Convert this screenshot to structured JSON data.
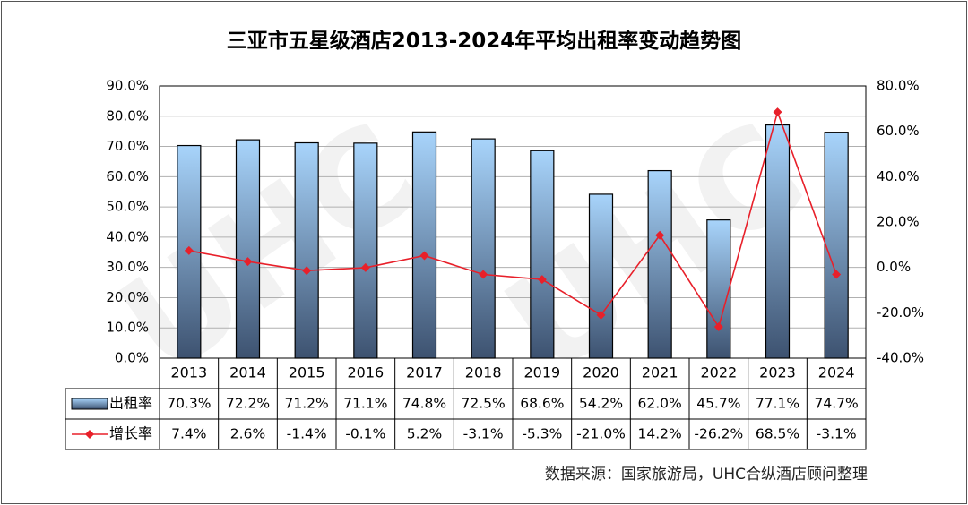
{
  "title": "三亚市五星级酒店2013-2024年平均出租率变动趋势图",
  "source": "数据来源：国家旅游局，UHC合纵酒店顾问整理",
  "watermark": "UHC",
  "chart_data": {
    "type": "bar",
    "title": "三亚市五星级酒店2013-2024年平均出租率变动趋势图",
    "categories": [
      "2013",
      "2014",
      "2015",
      "2016",
      "2017",
      "2018",
      "2019",
      "2020",
      "2021",
      "2022",
      "2023",
      "2024"
    ],
    "series": [
      {
        "name": "出租率",
        "type": "bar",
        "axis": "left",
        "values": [
          70.3,
          72.2,
          71.2,
          71.1,
          74.8,
          72.5,
          68.6,
          54.2,
          62.0,
          45.7,
          77.1,
          74.7
        ],
        "labels": [
          "70.3%",
          "72.2%",
          "71.2%",
          "71.1%",
          "74.8%",
          "72.5%",
          "68.6%",
          "54.2%",
          "62.0%",
          "45.7%",
          "77.1%",
          "74.7%"
        ]
      },
      {
        "name": "增长率",
        "type": "line",
        "axis": "right",
        "values": [
          7.4,
          2.6,
          -1.4,
          -0.1,
          5.2,
          -3.1,
          -5.3,
          -21.0,
          14.2,
          -26.2,
          68.5,
          -3.1
        ],
        "labels": [
          "7.4%",
          "2.6%",
          "-1.4%",
          "-0.1%",
          "5.2%",
          "-3.1%",
          "-5.3%",
          "-21.0%",
          "14.2%",
          "-26.2%",
          "68.5%",
          "-3.1%"
        ]
      }
    ],
    "y_left": {
      "min": 0,
      "max": 90,
      "step": 10,
      "tick_labels": [
        "0.0%",
        "10.0%",
        "20.0%",
        "30.0%",
        "40.0%",
        "50.0%",
        "60.0%",
        "70.0%",
        "80.0%",
        "90.0%"
      ]
    },
    "y_right": {
      "min": -40,
      "max": 80,
      "step": 20,
      "tick_labels": [
        "-40.0%",
        "-20.0%",
        "0.0%",
        "20.0%",
        "40.0%",
        "60.0%",
        "80.0%"
      ]
    },
    "grid": true,
    "legend": "data-table",
    "colors": {
      "bar_top": "#a8d4fb",
      "bar_bottom": "#3d5270",
      "line": "#e8202a",
      "grid": "#b0b0b0"
    }
  }
}
